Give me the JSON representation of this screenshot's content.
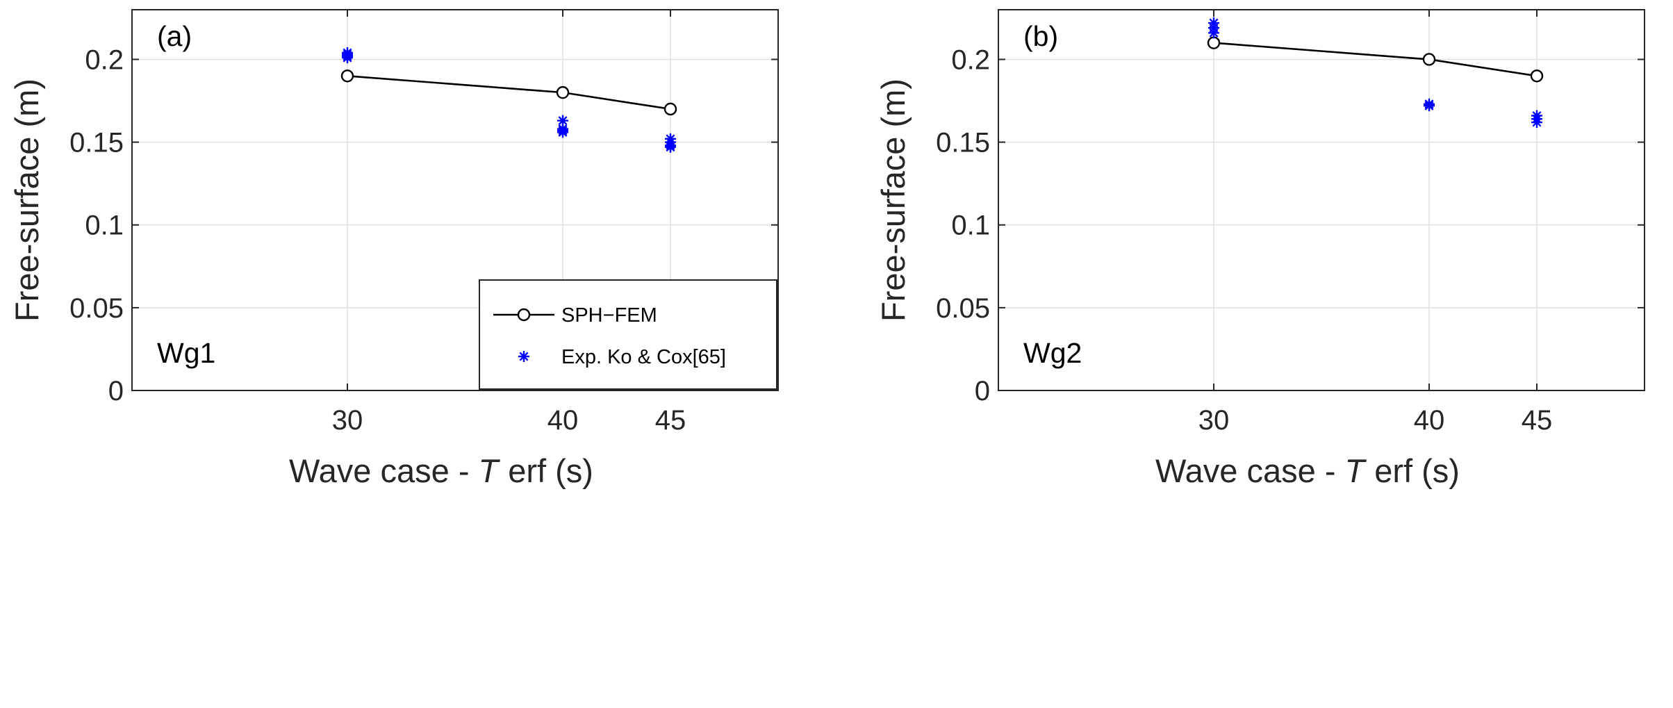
{
  "chart_data": [
    {
      "type": "line",
      "panel_label": "(a)",
      "annotation": "Wg1",
      "xlabel_prefix": "Wave case - ",
      "xlabel_italic": "T",
      "xlabel_suffix": "erf (s)",
      "ylabel": "Free-surface (m)",
      "xlim": [
        20,
        50
      ],
      "ylim": [
        0,
        0.23
      ],
      "xticks": [
        30,
        40,
        45
      ],
      "xtick_labels": [
        "30",
        "40",
        "45"
      ],
      "yticks": [
        0,
        0.05,
        0.1,
        0.15,
        0.2
      ],
      "ytick_labels": [
        "0",
        "0.05",
        "0.1",
        "0.15",
        "0.2"
      ],
      "grid": true,
      "legend_position": "bottom-right",
      "series": [
        {
          "name": "SPH−FEM",
          "style": "line-circle",
          "color": "#000000",
          "x": [
            30,
            40,
            45
          ],
          "y": [
            0.19,
            0.18,
            0.17
          ]
        },
        {
          "name": "Exp. Ko & Cox[65]",
          "style": "asterisk",
          "color": "#0000ff",
          "x": [
            30,
            30,
            30,
            30,
            40,
            40,
            40,
            40,
            45,
            45,
            45,
            45
          ],
          "y": [
            0.204,
            0.203,
            0.202,
            0.201,
            0.163,
            0.158,
            0.157,
            0.156,
            0.152,
            0.15,
            0.148,
            0.147
          ]
        }
      ]
    },
    {
      "type": "line",
      "panel_label": "(b)",
      "annotation": "Wg2",
      "xlabel_prefix": "Wave case - ",
      "xlabel_italic": "T",
      "xlabel_suffix": "erf (s)",
      "ylabel": "Free-surface (m)",
      "xlim": [
        20,
        50
      ],
      "ylim": [
        0,
        0.23
      ],
      "xticks": [
        30,
        40,
        45
      ],
      "xtick_labels": [
        "30",
        "40",
        "45"
      ],
      "yticks": [
        0,
        0.05,
        0.1,
        0.15,
        0.2
      ],
      "ytick_labels": [
        "0",
        "0.05",
        "0.1",
        "0.15",
        "0.2"
      ],
      "grid": true,
      "legend_position": "none",
      "series": [
        {
          "name": "SPH−FEM",
          "style": "line-circle",
          "color": "#000000",
          "x": [
            30,
            40,
            45
          ],
          "y": [
            0.21,
            0.2,
            0.19
          ]
        },
        {
          "name": "Exp. Ko & Cox[65]",
          "style": "asterisk",
          "color": "#0000ff",
          "x": [
            30,
            30,
            30,
            40,
            40,
            45,
            45,
            45
          ],
          "y": [
            0.222,
            0.219,
            0.216,
            0.173,
            0.172,
            0.166,
            0.164,
            0.162
          ]
        }
      ]
    }
  ]
}
